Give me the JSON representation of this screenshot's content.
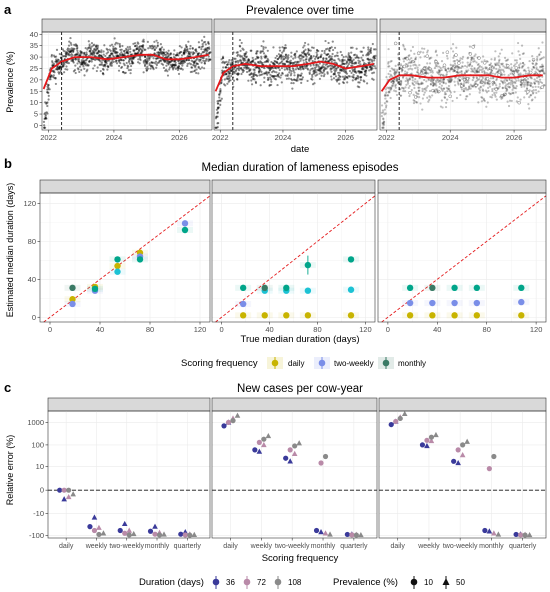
{
  "colors": {
    "strip_bg": "#d9d9d9",
    "panel_border": "#333333",
    "grid": "#ebebeb",
    "daily": "#c8b400",
    "two_weekly": "#7a8ee8",
    "monthly": "#3a7a65",
    "teal": "#00a58a",
    "cyan": "#1cc2d4",
    "identity": "#e41a1c",
    "trend": "#e3181b",
    "dur36": "#3a3a9a",
    "dur72": "#b98aa8",
    "dur108": "#8a8a8a"
  },
  "panel_a": {
    "tag": "a",
    "title": "Prevalence over time",
    "xlabel": "date",
    "ylabel": "Prevalence (%)",
    "strips": [
      "Sens = 100%, Spec = 100%",
      "Sens = 90%, Spec = 99%",
      "Sens=70%, Spec = 99%"
    ],
    "chart_data": {
      "type": "scatter",
      "x_ticks": [
        "2022",
        "2024",
        "2026"
      ],
      "y_ticks": [
        "0",
        "5",
        "10",
        "15",
        "20",
        "25",
        "30",
        "35",
        "40"
      ],
      "xlim": [
        2021.8,
        2027.0
      ],
      "ylim": [
        -2,
        41
      ],
      "vline_year": 2022.4,
      "trend_points": [
        [
          [
            2021.85,
            16
          ],
          [
            2022.1,
            25
          ],
          [
            2022.4,
            28
          ],
          [
            2022.8,
            30
          ],
          [
            2023.3,
            30
          ],
          [
            2023.8,
            29
          ],
          [
            2024.3,
            30
          ],
          [
            2024.8,
            31
          ],
          [
            2025.2,
            31
          ],
          [
            2025.6,
            29
          ],
          [
            2026.0,
            29
          ],
          [
            2026.5,
            30
          ],
          [
            2026.9,
            31
          ]
        ],
        [
          [
            2021.85,
            15
          ],
          [
            2022.1,
            23
          ],
          [
            2022.4,
            26
          ],
          [
            2022.8,
            27
          ],
          [
            2023.3,
            26
          ],
          [
            2023.8,
            26
          ],
          [
            2024.3,
            26
          ],
          [
            2024.8,
            27
          ],
          [
            2025.2,
            28
          ],
          [
            2025.6,
            27
          ],
          [
            2026.0,
            25
          ],
          [
            2026.5,
            26
          ],
          [
            2026.9,
            27
          ]
        ],
        [
          [
            2021.85,
            15
          ],
          [
            2022.1,
            20
          ],
          [
            2022.4,
            22
          ],
          [
            2022.8,
            22
          ],
          [
            2023.3,
            21
          ],
          [
            2023.8,
            21
          ],
          [
            2024.3,
            22
          ],
          [
            2024.8,
            22
          ],
          [
            2025.2,
            22
          ],
          [
            2025.6,
            21
          ],
          [
            2026.0,
            21
          ],
          [
            2026.5,
            22
          ],
          [
            2026.9,
            22
          ]
        ]
      ],
      "noise": [
        4.5,
        5.5,
        8
      ]
    }
  },
  "panel_b": {
    "tag": "b",
    "title": "Median duration of lameness episodes",
    "xlabel": "True median duration (days)",
    "ylabel": "Estimated median duration (days)",
    "strips": [
      "Sens = 100%, Spec = 100%",
      "Sens = 90%, Spec = 99%",
      "Sens=70%, Spec = 99%"
    ],
    "legend_title": "Scoring frequency",
    "legend_items": [
      "daily",
      "two-weekly",
      "monthly"
    ],
    "chart_data": {
      "type": "scatter",
      "x_ticks": [
        "0",
        "40",
        "80",
        "120"
      ],
      "y_ticks": [
        "0",
        "40",
        "80",
        "120"
      ],
      "xlim": [
        -8,
        128
      ],
      "ylim": [
        -5,
        131
      ],
      "series": [
        [
          {
            "x": 18,
            "y": 19,
            "c": "daily"
          },
          {
            "x": 18,
            "y": 14,
            "c": "two_weekly"
          },
          {
            "x": 18,
            "y": 31,
            "c": "monthly"
          },
          {
            "x": 36,
            "y": 32,
            "c": "daily"
          },
          {
            "x": 36,
            "y": 28,
            "c": "two_weekly"
          },
          {
            "x": 36,
            "y": 30,
            "c": "teal"
          },
          {
            "x": 54,
            "y": 54,
            "c": "daily"
          },
          {
            "x": 54,
            "y": 48,
            "c": "cyan"
          },
          {
            "x": 54,
            "y": 61,
            "c": "teal"
          },
          {
            "x": 72,
            "y": 68,
            "c": "daily"
          },
          {
            "x": 72,
            "y": 64,
            "c": "two_weekly"
          },
          {
            "x": 72,
            "y": 61,
            "c": "teal"
          },
          {
            "x": 108,
            "y": 99,
            "c": "two_weekly"
          },
          {
            "x": 108,
            "y": 92,
            "c": "teal"
          }
        ],
        [
          {
            "x": 18,
            "y": 2,
            "c": "daily"
          },
          {
            "x": 18,
            "y": 14,
            "c": "two_weekly"
          },
          {
            "x": 18,
            "y": 31,
            "c": "teal"
          },
          {
            "x": 36,
            "y": 2,
            "c": "daily"
          },
          {
            "x": 36,
            "y": 28,
            "c": "cyan"
          },
          {
            "x": 36,
            "y": 31,
            "c": "monthly"
          },
          {
            "x": 54,
            "y": 2,
            "c": "daily"
          },
          {
            "x": 54,
            "y": 28,
            "c": "cyan"
          },
          {
            "x": 54,
            "y": 31,
            "c": "teal"
          },
          {
            "x": 72,
            "y": 2,
            "c": "daily"
          },
          {
            "x": 72,
            "y": 28,
            "c": "cyan"
          },
          {
            "x": 72,
            "y": 55,
            "c": "teal"
          },
          {
            "x": 108,
            "y": 2,
            "c": "daily"
          },
          {
            "x": 108,
            "y": 29,
            "c": "cyan"
          },
          {
            "x": 108,
            "y": 61,
            "c": "teal"
          }
        ],
        [
          {
            "x": 18,
            "y": 2,
            "c": "daily"
          },
          {
            "x": 18,
            "y": 15,
            "c": "two_weekly"
          },
          {
            "x": 18,
            "y": 31,
            "c": "teal"
          },
          {
            "x": 36,
            "y": 2,
            "c": "daily"
          },
          {
            "x": 36,
            "y": 15,
            "c": "two_weekly"
          },
          {
            "x": 36,
            "y": 31,
            "c": "monthly"
          },
          {
            "x": 54,
            "y": 2,
            "c": "daily"
          },
          {
            "x": 54,
            "y": 15,
            "c": "two_weekly"
          },
          {
            "x": 54,
            "y": 31,
            "c": "teal"
          },
          {
            "x": 72,
            "y": 2,
            "c": "daily"
          },
          {
            "x": 72,
            "y": 15,
            "c": "two_weekly"
          },
          {
            "x": 72,
            "y": 31,
            "c": "teal"
          },
          {
            "x": 108,
            "y": 2,
            "c": "daily"
          },
          {
            "x": 108,
            "y": 16,
            "c": "two_weekly"
          },
          {
            "x": 108,
            "y": 31,
            "c": "teal"
          }
        ]
      ]
    }
  },
  "panel_c": {
    "tag": "c",
    "title": "New cases per cow-year",
    "xlabel": "Scoring frequency",
    "ylabel": "Relative error (%)",
    "strips": [
      "Sens = 100%, Spec = 100%",
      "Sens = 90%, Spec = 99%",
      "Sens = 70%, Spec = 99%"
    ],
    "legend_duration_title": "Duration (days)",
    "legend_duration_items": [
      "36",
      "72",
      "108"
    ],
    "legend_prev_title": "Prevalence (%)",
    "legend_prev_items": [
      "10",
      "50"
    ],
    "chart_data": {
      "type": "scatter",
      "categories": [
        "daily",
        "weekly",
        "two-weekly",
        "monthly",
        "quarterly"
      ],
      "y_ticks": [
        "1000",
        "100",
        "10",
        "0",
        "-10",
        "-100"
      ],
      "series": [
        [
          [
            [
              0,
              -1.5
            ],
            [
              0,
              -1
            ],
            [
              0,
              -0.5
            ]
          ],
          [
            [
              -40,
              -15
            ],
            [
              -60,
              -45
            ],
            [
              -90,
              -80
            ]
          ],
          [
            [
              -60,
              -30
            ],
            [
              -80,
              -60
            ],
            [
              -95,
              -85
            ]
          ],
          [
            [
              -65,
              -40
            ],
            [
              -88,
              -75
            ],
            [
              -95,
              -90
            ]
          ],
          [
            [
              -88,
              -70
            ],
            [
              -95,
              -88
            ],
            [
              -97,
              -93
            ]
          ]
        ],
        [
          [
            [
              700,
              1000
            ],
            [
              1000,
              1500
            ],
            [
              1200,
              2000
            ]
          ],
          [
            [
              60,
              50
            ],
            [
              130,
              100
            ],
            [
              180,
              250
            ]
          ],
          [
            [
              25,
              18
            ],
            [
              60,
              40
            ],
            [
              90,
              120
            ]
          ],
          [
            [
              -60,
              -70
            ],
            [
              15,
              -80
            ],
            [
              30,
              -90
            ]
          ],
          [
            [
              -90,
              -88
            ],
            [
              -94,
              -92
            ],
            [
              -96,
              -95
            ]
          ]
        ],
        [
          [
            [
              800,
              1100
            ],
            [
              1100,
              1700
            ],
            [
              1500,
              2400
            ]
          ],
          [
            [
              100,
              90
            ],
            [
              160,
              150
            ],
            [
              220,
              280
            ]
          ],
          [
            [
              18,
              15
            ],
            [
              60,
              35
            ],
            [
              100,
              140
            ]
          ],
          [
            [
              -60,
              -65
            ],
            [
              8,
              -80
            ],
            [
              30,
              -90
            ]
          ],
          [
            [
              -90,
              -88
            ],
            [
              -94,
              -92
            ],
            [
              -96,
              -95
            ]
          ]
        ]
      ]
    }
  }
}
